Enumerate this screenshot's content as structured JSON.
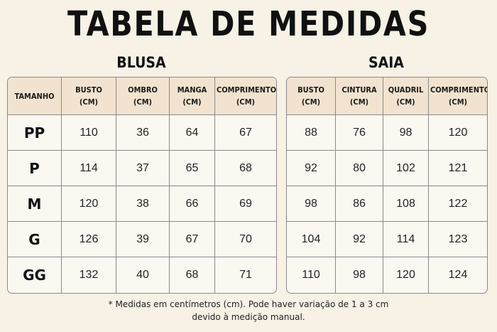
{
  "title": "TABELA DE MEDIDAS",
  "blusa": {
    "title": "BLUSA",
    "headers": [
      {
        "l1": "TAMANHO",
        "l2": ""
      },
      {
        "l1": "BUSTO",
        "l2": "(CM)"
      },
      {
        "l1": "OMBRO",
        "l2": "(CM)"
      },
      {
        "l1": "MANGA",
        "l2": "(CM)"
      },
      {
        "l1": "COMPRIMENTO",
        "l2": "(CM)"
      }
    ],
    "rows": [
      [
        "PP",
        "110",
        "36",
        "64",
        "67"
      ],
      [
        "P",
        "114",
        "37",
        "65",
        "68"
      ],
      [
        "M",
        "120",
        "38",
        "66",
        "69"
      ],
      [
        "G",
        "126",
        "39",
        "67",
        "70"
      ],
      [
        "GG",
        "132",
        "40",
        "68",
        "71"
      ]
    ]
  },
  "saia": {
    "title": "SAIA",
    "headers": [
      {
        "l1": "BUSTO",
        "l2": "(CM)"
      },
      {
        "l1": "CINTURA",
        "l2": "(CM)"
      },
      {
        "l1": "QUADRIL",
        "l2": "(CM)"
      },
      {
        "l1": "COMPRIMENTO",
        "l2": "(CM)"
      }
    ],
    "rows": [
      [
        "88",
        "76",
        "98",
        "120"
      ],
      [
        "92",
        "80",
        "102",
        "121"
      ],
      [
        "98",
        "86",
        "108",
        "122"
      ],
      [
        "104",
        "92",
        "114",
        "123"
      ],
      [
        "110",
        "98",
        "120",
        "124"
      ]
    ]
  },
  "footnote": {
    "line1": "* Medidas em centímetros (cm). Pode haver variação de 1 a 3 cm",
    "line2": "devido à medição manual."
  }
}
